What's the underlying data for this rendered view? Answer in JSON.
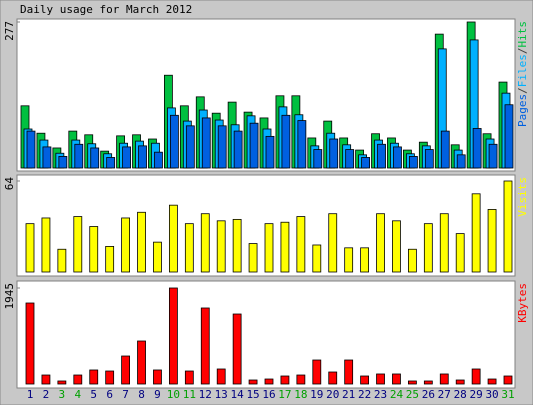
{
  "title": "Daily usage for March 2012",
  "chart_data": [
    {
      "type": "bar",
      "legend_separator": "/",
      "ylim": [
        0,
        277
      ],
      "yticks": [
        277
      ],
      "series": [
        {
          "name": "Hits",
          "color": "#00c040",
          "values": [
            118,
            66,
            38,
            70,
            63,
            32,
            61,
            63,
            55,
            176,
            118,
            135,
            104,
            125,
            106,
            95,
            137,
            137,
            57,
            89,
            57,
            34,
            65,
            57,
            34,
            49,
            254,
            44,
            277,
            65,
            163
          ]
        },
        {
          "name": "Files",
          "color": "#00b0ff",
          "values": [
            74,
            53,
            28,
            53,
            46,
            27,
            47,
            51,
            47,
            114,
            89,
            110,
            91,
            82,
            99,
            74,
            116,
            101,
            42,
            66,
            44,
            25,
            53,
            47,
            27,
            42,
            226,
            34,
            243,
            55,
            142
          ]
        },
        {
          "name": "Pages",
          "color": "#0060e0",
          "values": [
            70,
            40,
            22,
            45,
            38,
            20,
            40,
            42,
            30,
            100,
            80,
            95,
            80,
            70,
            85,
            60,
            100,
            90,
            35,
            55,
            35,
            20,
            45,
            40,
            22,
            35,
            70,
            25,
            75,
            45,
            120
          ]
        }
      ]
    },
    {
      "type": "bar",
      "ylim": [
        0,
        64
      ],
      "yticks": [
        64
      ],
      "series": [
        {
          "name": "Visits",
          "color": "#ffff00",
          "values": [
            34,
            38,
            16,
            39,
            32,
            18,
            38,
            42,
            21,
            47,
            34,
            41,
            36,
            37,
            20,
            34,
            35,
            39,
            19,
            41,
            17,
            17,
            41,
            36,
            16,
            34,
            41,
            27,
            55,
            44,
            64
          ]
        }
      ]
    },
    {
      "type": "bar",
      "ylim": [
        0,
        1945
      ],
      "yticks": [
        1945
      ],
      "series": [
        {
          "name": "KBytes",
          "color": "#ff0000",
          "values": [
            1641,
            182,
            61,
            182,
            284,
            263,
            567,
            871,
            284,
            1945,
            263,
            1540,
            304,
            1418,
            81,
            101,
            162,
            182,
            486,
            243,
            486,
            162,
            203,
            203,
            61,
            61,
            203,
            81,
            304,
            101,
            162
          ]
        }
      ],
      "categories": [
        "1",
        "2",
        "3",
        "4",
        "5",
        "6",
        "7",
        "8",
        "9",
        "10",
        "11",
        "12",
        "13",
        "14",
        "15",
        "16",
        "17",
        "18",
        "19",
        "20",
        "21",
        "22",
        "23",
        "24",
        "25",
        "26",
        "27",
        "28",
        "29",
        "30",
        "31"
      ],
      "category_colors": [
        "#000080",
        "#000080",
        "#00a000",
        "#00a000",
        "#000080",
        "#000080",
        "#000080",
        "#000080",
        "#000080",
        "#00a000",
        "#00a000",
        "#000080",
        "#000080",
        "#000080",
        "#000080",
        "#000080",
        "#00a000",
        "#00a000",
        "#000080",
        "#000080",
        "#000080",
        "#000080",
        "#000080",
        "#00a000",
        "#00a000",
        "#000080",
        "#000080",
        "#000080",
        "#000080",
        "#000080",
        "#00a000"
      ]
    }
  ]
}
